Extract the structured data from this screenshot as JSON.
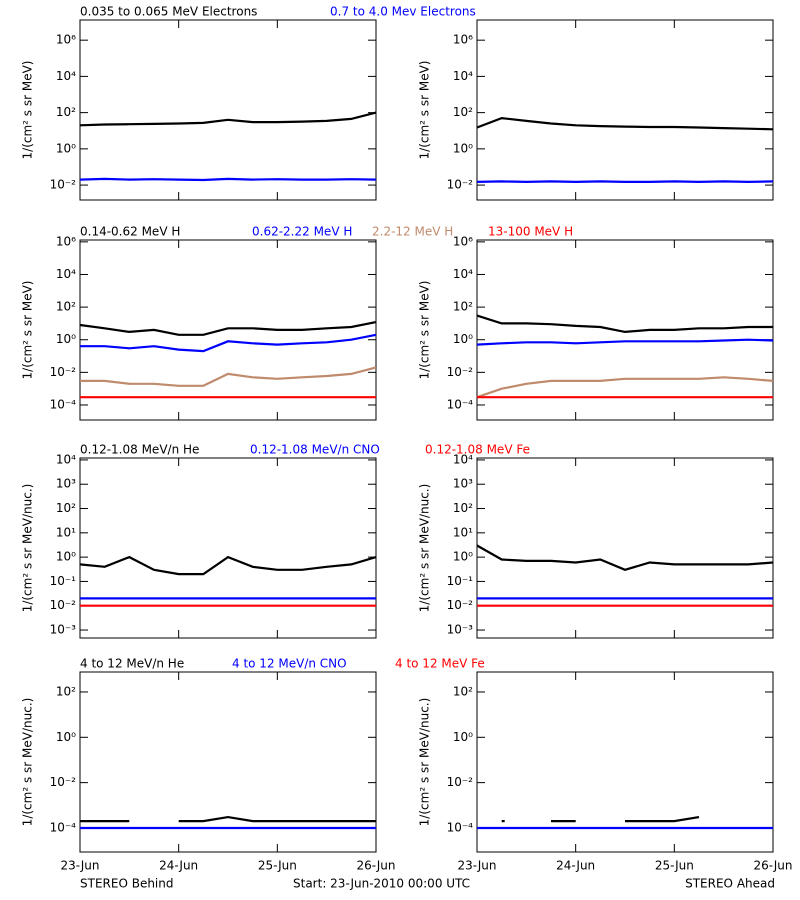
{
  "chart_data": [
    {
      "type": "line",
      "log_y": true,
      "ylabel": "1/(cm² s sr MeV)",
      "x": [
        0,
        0.25,
        0.5,
        0.75,
        1,
        1.25,
        1.5,
        1.75,
        2,
        2.25,
        2.5,
        2.75,
        3
      ],
      "xlim": [
        0,
        3
      ],
      "xticks": [
        0,
        1,
        2,
        3
      ],
      "ylim": [
        0.0015,
        13000000
      ],
      "yticks": [
        {
          "value": 0.01,
          "label": "10⁻²"
        },
        {
          "value": 1,
          "label": "10⁰"
        },
        {
          "value": 100,
          "label": "10²"
        },
        {
          "value": 10000,
          "label": "10⁴"
        },
        {
          "value": 1000000,
          "label": "10⁶"
        }
      ],
      "series": [
        {
          "name": "0.035 to 0.065 MeV Electrons",
          "color": "#000000",
          "values": [
            20,
            22,
            23,
            24,
            25,
            27,
            40,
            30,
            30,
            32,
            35,
            45,
            100
          ]
        },
        {
          "name": "0.7 to 4.0 Mev Electrons",
          "color": "#0000ff",
          "values": [
            0.02,
            0.022,
            0.02,
            0.021,
            0.02,
            0.019,
            0.022,
            0.02,
            0.021,
            0.02,
            0.02,
            0.021,
            0.02
          ]
        }
      ]
    },
    {
      "type": "line",
      "log_y": true,
      "ylabel": "1/(cm² s sr MeV)",
      "x": [
        0,
        0.25,
        0.5,
        0.75,
        1,
        1.25,
        1.5,
        1.75,
        2,
        2.25,
        2.5,
        2.75,
        3
      ],
      "xlim": [
        0,
        3
      ],
      "xticks": [
        0,
        1,
        2,
        3
      ],
      "ylim": [
        0.0015,
        13000000
      ],
      "yticks": [
        {
          "value": 0.01,
          "label": "10⁻²"
        },
        {
          "value": 1,
          "label": "10⁰"
        },
        {
          "value": 100,
          "label": "10²"
        },
        {
          "value": 10000,
          "label": "10⁴"
        },
        {
          "value": 1000000,
          "label": "10⁶"
        }
      ],
      "series": [
        {
          "color": "#000000",
          "values": [
            15,
            50,
            35,
            25,
            20,
            18,
            17,
            16,
            16,
            15,
            14,
            13,
            12
          ]
        },
        {
          "color": "#0000ff",
          "values": [
            0.015,
            0.016,
            0.015,
            0.016,
            0.015,
            0.016,
            0.015,
            0.015,
            0.016,
            0.015,
            0.016,
            0.015,
            0.016
          ]
        }
      ]
    },
    {
      "type": "line",
      "log_y": true,
      "ylabel": "1/(cm² s sr MeV)",
      "x": [
        0,
        0.25,
        0.5,
        0.75,
        1,
        1.25,
        1.5,
        1.75,
        2,
        2.25,
        2.5,
        2.75,
        3
      ],
      "xlim": [
        0,
        3
      ],
      "xticks": [
        0,
        1,
        2,
        3
      ],
      "ylim": [
        1.2e-05,
        1300000
      ],
      "yticks": [
        {
          "value": 0.0001,
          "label": "10⁻⁴"
        },
        {
          "value": 0.01,
          "label": "10⁻²"
        },
        {
          "value": 1,
          "label": "10⁰"
        },
        {
          "value": 100,
          "label": "10²"
        },
        {
          "value": 10000,
          "label": "10⁴"
        },
        {
          "value": 1000000,
          "label": "10⁶"
        }
      ],
      "series": [
        {
          "name": "0.14-0.62 MeV H",
          "color": "#000000",
          "values": [
            8,
            5,
            3,
            4,
            2,
            2,
            5,
            5,
            4,
            4,
            5,
            6,
            12
          ]
        },
        {
          "name": "0.62-2.22 MeV H",
          "color": "#0000ff",
          "values": [
            0.4,
            0.4,
            0.3,
            0.4,
            0.25,
            0.2,
            0.8,
            0.6,
            0.5,
            0.6,
            0.7,
            1,
            2
          ]
        },
        {
          "name": "2.2-12 MeV H",
          "color": "#c08a6c",
          "values": [
            0.003,
            0.003,
            0.002,
            0.002,
            0.0015,
            0.0015,
            0.008,
            0.005,
            0.004,
            0.005,
            0.006,
            0.008,
            0.02
          ]
        },
        {
          "name": "13-100 MeV H",
          "color": "#ff0000",
          "values": [
            0.0003,
            0.0003,
            0.0003,
            0.0003,
            0.0003,
            0.0003,
            0.0003,
            0.0003,
            0.0003,
            0.0003,
            0.0003,
            0.0003,
            0.0003
          ]
        }
      ]
    },
    {
      "type": "line",
      "log_y": true,
      "ylabel": "1/(cm² s sr MeV)",
      "x": [
        0,
        0.25,
        0.5,
        0.75,
        1,
        1.25,
        1.5,
        1.75,
        2,
        2.25,
        2.5,
        2.75,
        3
      ],
      "xlim": [
        0,
        3
      ],
      "xticks": [
        0,
        1,
        2,
        3
      ],
      "ylim": [
        1.2e-05,
        1300000
      ],
      "yticks": [
        {
          "value": 0.0001,
          "label": "10⁻⁴"
        },
        {
          "value": 0.01,
          "label": "10⁻²"
        },
        {
          "value": 1,
          "label": "10⁰"
        },
        {
          "value": 100,
          "label": "10²"
        },
        {
          "value": 10000,
          "label": "10⁴"
        },
        {
          "value": 1000000,
          "label": "10⁶"
        }
      ],
      "series": [
        {
          "color": "#000000",
          "values": [
            30,
            10,
            10,
            9,
            7,
            6,
            3,
            4,
            4,
            5,
            5,
            6,
            6
          ]
        },
        {
          "color": "#0000ff",
          "values": [
            0.5,
            0.6,
            0.7,
            0.7,
            0.6,
            0.7,
            0.8,
            0.8,
            0.8,
            0.8,
            0.9,
            1,
            0.9
          ]
        },
        {
          "color": "#c08a6c",
          "values": [
            0.0003,
            0.001,
            0.002,
            0.003,
            0.003,
            0.003,
            0.004,
            0.004,
            0.004,
            0.004,
            0.005,
            0.004,
            0.003
          ]
        },
        {
          "color": "#ff0000",
          "values": [
            0.0003,
            0.0003,
            0.0003,
            0.0003,
            0.0003,
            0.0003,
            0.0003,
            0.0003,
            0.0003,
            0.0003,
            0.0003,
            0.0003,
            0.0003
          ]
        }
      ]
    },
    {
      "type": "line",
      "log_y": true,
      "ylabel": "1/(cm² s sr MeV/nuc.)",
      "x": [
        0,
        0.25,
        0.5,
        0.75,
        1,
        1.25,
        1.5,
        1.75,
        2,
        2.25,
        2.5,
        2.75,
        3
      ],
      "xlim": [
        0,
        3
      ],
      "xticks": [
        0,
        1,
        2,
        3
      ],
      "ylim": [
        0.00047,
        12000
      ],
      "yticks": [
        {
          "value": 0.001,
          "label": "10⁻³"
        },
        {
          "value": 0.01,
          "label": "10⁻²"
        },
        {
          "value": 0.1,
          "label": "10⁻¹"
        },
        {
          "value": 1,
          "label": "10⁰"
        },
        {
          "value": 10,
          "label": "10¹"
        },
        {
          "value": 100,
          "label": "10²"
        },
        {
          "value": 1000,
          "label": "10³"
        },
        {
          "value": 10000,
          "label": "10⁴"
        }
      ],
      "series": [
        {
          "name": "0.12-1.08 MeV/n He",
          "color": "#000000",
          "values": [
            0.5,
            0.4,
            1,
            0.3,
            0.2,
            0.2,
            1,
            0.4,
            0.3,
            0.3,
            0.4,
            0.5,
            1
          ]
        },
        {
          "name": "0.12-1.08 MeV/n CNO",
          "color": "#0000ff",
          "values": [
            0.02,
            0.02,
            0.02,
            0.02,
            0.02,
            0.02,
            0.02,
            0.02,
            0.02,
            0.02,
            0.02,
            0.02,
            0.02
          ]
        },
        {
          "name": "0.12-1.08 MeV Fe",
          "color": "#ff0000",
          "values": [
            0.01,
            0.01,
            0.01,
            0.01,
            0.01,
            0.01,
            0.01,
            0.01,
            0.01,
            0.01,
            0.01,
            0.01,
            0.01
          ]
        }
      ]
    },
    {
      "type": "line",
      "log_y": true,
      "ylabel": "1/(cm² s sr MeV/nuc.)",
      "x": [
        0,
        0.25,
        0.5,
        0.75,
        1,
        1.25,
        1.5,
        1.75,
        2,
        2.25,
        2.5,
        2.75,
        3
      ],
      "xlim": [
        0,
        3
      ],
      "xticks": [
        0,
        1,
        2,
        3
      ],
      "ylim": [
        0.00047,
        12000
      ],
      "yticks": [
        {
          "value": 0.001,
          "label": "10⁻³"
        },
        {
          "value": 0.01,
          "label": "10⁻²"
        },
        {
          "value": 0.1,
          "label": "10⁻¹"
        },
        {
          "value": 1,
          "label": "10⁰"
        },
        {
          "value": 10,
          "label": "10¹"
        },
        {
          "value": 100,
          "label": "10²"
        },
        {
          "value": 1000,
          "label": "10³"
        },
        {
          "value": 10000,
          "label": "10⁴"
        }
      ],
      "series": [
        {
          "color": "#000000",
          "values": [
            3,
            0.8,
            0.7,
            0.7,
            0.6,
            0.8,
            0.3,
            0.6,
            0.5,
            0.5,
            0.5,
            0.5,
            0.6
          ]
        },
        {
          "color": "#0000ff",
          "values": [
            0.02,
            0.02,
            0.02,
            0.02,
            0.02,
            0.02,
            0.02,
            0.02,
            0.02,
            0.02,
            0.02,
            0.02,
            0.02
          ]
        },
        {
          "color": "#ff0000",
          "values": [
            0.01,
            0.01,
            0.01,
            0.01,
            0.01,
            0.01,
            0.01,
            0.01,
            0.01,
            0.01,
            0.01,
            0.01,
            0.01
          ]
        }
      ]
    },
    {
      "type": "line",
      "log_y": true,
      "ylabel": "1/(cm² s sr MeV/nuc.)",
      "x": [
        0,
        0.25,
        0.5,
        0.75,
        1,
        1.25,
        1.5,
        1.75,
        2,
        2.25,
        2.5,
        2.75,
        3
      ],
      "xlim": [
        0,
        3
      ],
      "xticks": [
        {
          "value": 0,
          "label": "23-Jun"
        },
        {
          "value": 1,
          "label": "24-Jun"
        },
        {
          "value": 2,
          "label": "25-Jun"
        },
        {
          "value": 3,
          "label": "26-Jun"
        }
      ],
      "ylim": [
        8.7e-06,
        760
      ],
      "yticks": [
        {
          "value": 0.0001,
          "label": "10⁻⁴"
        },
        {
          "value": 0.01,
          "label": "10⁻²"
        },
        {
          "value": 1,
          "label": "10⁰"
        },
        {
          "value": 100,
          "label": "10²"
        }
      ],
      "series": [
        {
          "name": "4 to 12 MeV/n He",
          "color": "#000000",
          "values": [
            0.0002,
            0.0002,
            0.0002,
            null,
            0.0002,
            0.0002,
            0.0003,
            0.0002,
            0.0002,
            0.0002,
            0.0002,
            0.0002,
            0.0002
          ]
        },
        {
          "name": "4 to 12 MeV/n CNO",
          "color": "#0000ff",
          "values": [
            0.0001,
            0.0001,
            0.0001,
            0.0001,
            0.0001,
            0.0001,
            0.0001,
            0.0001,
            0.0001,
            0.0001,
            0.0001,
            0.0001,
            0.0001
          ]
        },
        {
          "name": "4 to 12 MeV Fe",
          "color": "#ff0000",
          "values": [
            null,
            null,
            null,
            null,
            null,
            null,
            null,
            null,
            null,
            null,
            null,
            null,
            null
          ]
        }
      ]
    },
    {
      "type": "line",
      "log_y": true,
      "ylabel": "1/(cm² s sr MeV/nuc.)",
      "x": [
        0,
        0.25,
        0.5,
        0.75,
        1,
        1.25,
        1.5,
        1.75,
        2,
        2.25,
        2.5,
        2.75,
        3
      ],
      "xlim": [
        0,
        3
      ],
      "xticks": [
        {
          "value": 0,
          "label": "23-Jun"
        },
        {
          "value": 1,
          "label": "24-Jun"
        },
        {
          "value": 2,
          "label": "25-Jun"
        },
        {
          "value": 3,
          "label": "26-Jun"
        }
      ],
      "ylim": [
        8.7e-06,
        760
      ],
      "yticks": [
        {
          "value": 0.0001,
          "label": "10⁻⁴"
        },
        {
          "value": 0.01,
          "label": "10⁻²"
        },
        {
          "value": 1,
          "label": "10⁰"
        },
        {
          "value": 100,
          "label": "10²"
        }
      ],
      "series": [
        {
          "color": "#000000",
          "values": [
            null,
            0.0002,
            null,
            0.0002,
            0.0002,
            null,
            0.0002,
            0.0002,
            0.0002,
            0.0003,
            null,
            null,
            null
          ]
        },
        {
          "color": "#0000ff",
          "values": [
            0.0001,
            0.0001,
            0.0001,
            0.0001,
            0.0001,
            0.0001,
            0.0001,
            0.0001,
            0.0001,
            0.0001,
            0.0001,
            0.0001,
            0.0001
          ]
        },
        {
          "color": "#ff0000",
          "values": [
            null,
            null,
            null,
            null,
            null,
            null,
            null,
            null,
            null,
            null,
            null,
            null,
            null
          ]
        }
      ]
    }
  ],
  "footer": {
    "left": "STEREO Behind",
    "center": "Start: 23-Jun-2010 00:00 UTC",
    "right": "STEREO Ahead"
  }
}
